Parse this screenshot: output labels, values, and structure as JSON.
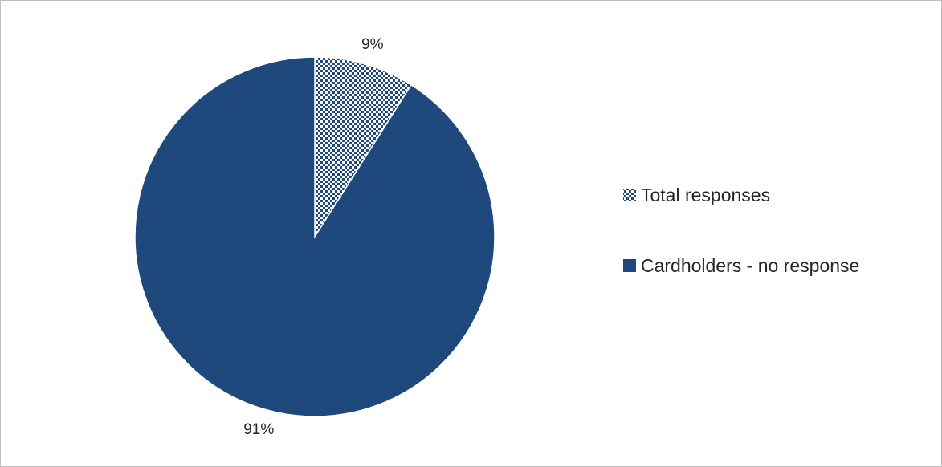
{
  "chart_data": {
    "type": "pie",
    "slices": [
      {
        "label": "Total responses",
        "value": 9,
        "display": "9%",
        "color": "#1f497d",
        "pattern": "dotted"
      },
      {
        "label": "Cardholders - no response",
        "value": 91,
        "display": "91%",
        "color": "#1f497d",
        "pattern": "solid"
      }
    ],
    "legend_position": "right",
    "title": ""
  }
}
